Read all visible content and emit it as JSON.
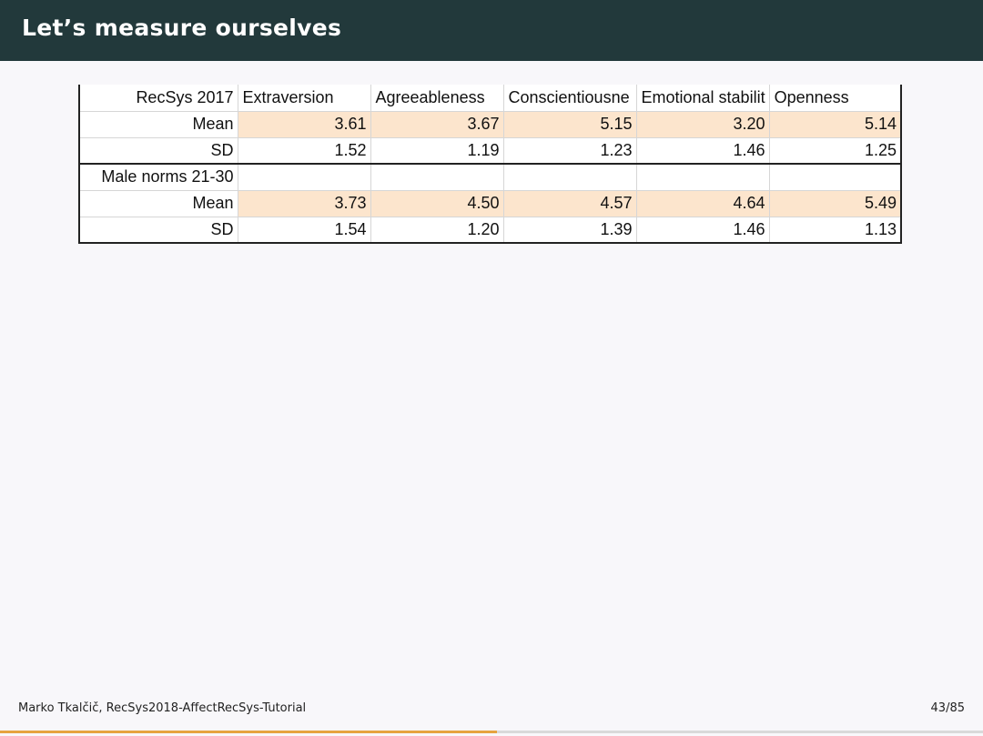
{
  "header": {
    "title": "Let’s measure ourselves"
  },
  "table": {
    "rows": [
      {
        "label": "RecSys 2017",
        "cells": [
          "Extraversion",
          "Agreeableness",
          "Conscientiousne",
          "Emotional stabilit",
          "Openness"
        ]
      },
      {
        "label": "Mean",
        "cells": [
          "3.61",
          "3.67",
          "5.15",
          "3.20",
          "5.14"
        ]
      },
      {
        "label": "SD",
        "cells": [
          "1.52",
          "1.19",
          "1.23",
          "1.46",
          "1.25"
        ]
      },
      {
        "label": "Male norms 21-30",
        "cells": [
          "",
          "",
          "",
          "",
          ""
        ]
      },
      {
        "label": "Mean",
        "cells": [
          "3.73",
          "4.50",
          "4.57",
          "4.64",
          "5.49"
        ]
      },
      {
        "label": "SD",
        "cells": [
          "1.54",
          "1.20",
          "1.39",
          "1.46",
          "1.13"
        ]
      }
    ],
    "highlight_color": "#fce5cd"
  },
  "footer": {
    "author": "Marko Tkalčič, RecSys2018-AffectRecSys-Tutorial",
    "page": "43/85",
    "progress": 0.506
  },
  "colors": {
    "header_bg": "#22393b",
    "accent": "#e6a33f"
  }
}
